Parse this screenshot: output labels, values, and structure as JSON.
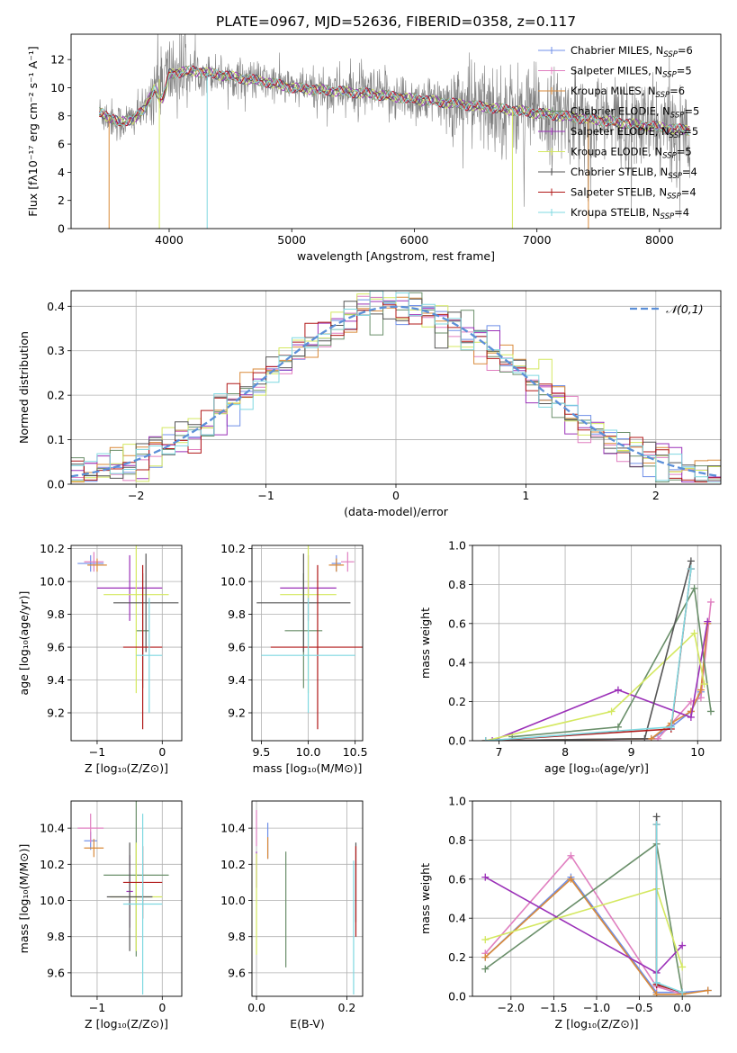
{
  "figure": {
    "title": "PLATE=0967, MJD=52636, FIBERID=0358, z=0.117"
  },
  "series_names": [
    "Chabrier MILES",
    "Salpeter MILES",
    "Kroupa MILES",
    "Chabrier ELODIE",
    "Salpeter ELODIE",
    "Kroupa ELODIE",
    "Chabrier STELIB",
    "Salpeter STELIB",
    "Kroupa STELIB"
  ],
  "colors": {
    "Chabrier MILES": "#6f8fe8",
    "Salpeter MILES": "#e07fc0",
    "Kroupa MILES": "#d98a3a",
    "Chabrier ELODIE": "#6a8f6a",
    "Salpeter ELODIE": "#9b30b8",
    "Kroupa ELODIE": "#d4e860",
    "Chabrier STELIB": "#555555",
    "Salpeter STELIB": "#b01818",
    "Kroupa STELIB": "#7fd8e0",
    "data": "#808080",
    "gaussian": "#5b8fd8"
  },
  "chart_data": [
    {
      "id": "spectrum",
      "type": "line",
      "xlabel": "wavelength [Angstrom, rest frame]",
      "ylabel": "Flux [fλ10⁻¹⁷ erg cm⁻² s⁻¹ A⁻¹]",
      "xlim": [
        3200,
        8500
      ],
      "ylim": [
        0,
        13.8
      ],
      "xticks": [
        4000,
        5000,
        6000,
        7000,
        8000
      ],
      "yticks": [
        0,
        2,
        4,
        6,
        8,
        10,
        12
      ],
      "legend": [
        "Chabrier MILES, N_SSP=6",
        "Salpeter MILES, N_SSP=5",
        "Kroupa MILES, N_SSP=6",
        "Chabrier ELODIE, N_SSP=5",
        "Salpeter ELODIE, N_SSP=5",
        "Kroupa ELODIE, N_SSP=5",
        "Chabrier STELIB, N_SSP=4",
        "Salpeter STELIB, N_SSP=4",
        "Kroupa STELIB, N_SSP=4"
      ],
      "legend_placement": "upper right",
      "continuum": {
        "x": [
          3450,
          3600,
          3700,
          3800,
          3900,
          4000,
          4200,
          4500,
          4800,
          5000,
          5300,
          5600,
          6000,
          6300,
          6600,
          7000,
          7400,
          7800,
          8200
        ],
        "y": [
          8.2,
          7.5,
          7.8,
          8.4,
          10.5,
          11.0,
          11.2,
          10.8,
          10.4,
          10.0,
          9.8,
          9.6,
          9.2,
          8.9,
          8.6,
          8.2,
          7.8,
          7.4,
          7.0
        ]
      },
      "absorption_dips": [
        {
          "x": 3510,
          "y": 0
        },
        {
          "x": 3920,
          "y": 0
        },
        {
          "x": 4310,
          "y": 0
        },
        {
          "x": 6800,
          "y": 0
        },
        {
          "x": 7420,
          "y": 0
        }
      ]
    },
    {
      "id": "residuals",
      "type": "histogram",
      "xlabel": "(data-model)/error",
      "ylabel": "Normed distribution",
      "xlim": [
        -2.5,
        2.5
      ],
      "ylim": [
        0,
        0.435
      ],
      "xticks": [
        -2,
        -1,
        0,
        1,
        2
      ],
      "yticks": [
        0.0,
        0.1,
        0.2,
        0.3,
        0.4
      ],
      "grid": true,
      "gaussian_label": "𝒩(0,1)",
      "legend_placement": "upper right"
    },
    {
      "id": "age-vs-Z",
      "type": "scatter",
      "xlabel": "Z [log₁₀(Z/Z⊙)]",
      "ylabel": "age  [log₁₀(age/yr)]",
      "xlim": [
        -1.4,
        0.3
      ],
      "ylim": [
        9.03,
        10.22
      ],
      "xticks": [
        -1,
        0
      ],
      "yticks": [
        9.2,
        9.4,
        9.6,
        9.8,
        10.0,
        10.2
      ],
      "grid": true,
      "points": [
        {
          "series": "Chabrier MILES",
          "x": -1.1,
          "xerr": 0.2,
          "y": 10.11,
          "yerr": 0.05
        },
        {
          "series": "Salpeter MILES",
          "x": -1.05,
          "xerr": 0.15,
          "y": 10.12,
          "yerr": 0.06
        },
        {
          "series": "Kroupa MILES",
          "x": -1.0,
          "xerr": 0.15,
          "y": 10.1,
          "yerr": 0.04
        },
        {
          "series": "Chabrier ELODIE",
          "x": -0.3,
          "xerr": 0.1,
          "y": 9.7,
          "yerr": 0.35
        },
        {
          "series": "Salpeter ELODIE",
          "x": -0.5,
          "xerr": 0.5,
          "y": 9.96,
          "yerr": 0.2
        },
        {
          "series": "Kroupa ELODIE",
          "x": -0.4,
          "xerr": 0.5,
          "y": 9.92,
          "yerr": 0.6
        },
        {
          "series": "Chabrier STELIB",
          "x": -0.25,
          "xerr": 0.5,
          "y": 9.87,
          "yerr": 0.3
        },
        {
          "series": "Salpeter STELIB",
          "x": -0.3,
          "xerr": 0.3,
          "y": 9.6,
          "yerr": 0.5
        },
        {
          "series": "Kroupa STELIB",
          "x": -0.2,
          "xerr": 0.2,
          "y": 9.55,
          "yerr": 0.35
        }
      ]
    },
    {
      "id": "age-vs-mass",
      "type": "scatter",
      "xlabel": "mass [log₁₀(M/M⊙)]",
      "ylabel": "",
      "xlim": [
        9.4,
        10.58
      ],
      "ylim": [
        9.03,
        10.22
      ],
      "xticks": [
        9.5,
        10.0,
        10.5
      ],
      "yticks": [
        9.2,
        9.4,
        9.6,
        9.8,
        10.0,
        10.2
      ],
      "grid": true,
      "points": [
        {
          "series": "Chabrier MILES",
          "x": 10.3,
          "xerr": 0.05,
          "y": 10.11,
          "yerr": 0.05
        },
        {
          "series": "Salpeter MILES",
          "x": 10.42,
          "xerr": 0.07,
          "y": 10.12,
          "yerr": 0.06
        },
        {
          "series": "Kroupa MILES",
          "x": 10.3,
          "xerr": 0.08,
          "y": 10.1,
          "yerr": 0.04
        },
        {
          "series": "Chabrier ELODIE",
          "x": 9.95,
          "xerr": 0.2,
          "y": 9.7,
          "yerr": 0.35
        },
        {
          "series": "Salpeter ELODIE",
          "x": 10.0,
          "xerr": 0.3,
          "y": 9.96,
          "yerr": 0.2
        },
        {
          "series": "Kroupa ELODIE",
          "x": 10.0,
          "xerr": 0.3,
          "y": 9.92,
          "yerr": 0.6
        },
        {
          "series": "Chabrier STELIB",
          "x": 9.95,
          "xerr": 0.5,
          "y": 9.87,
          "yerr": 0.3
        },
        {
          "series": "Salpeter STELIB",
          "x": 10.1,
          "xerr": 0.5,
          "y": 9.6,
          "yerr": 0.5
        },
        {
          "series": "Kroupa STELIB",
          "x": 10.0,
          "xerr": 0.5,
          "y": 9.55,
          "yerr": 0.35
        }
      ]
    },
    {
      "id": "weight-vs-age",
      "type": "line",
      "xlabel": "age  [log₁₀(age/yr)]",
      "ylabel": "mass weight",
      "xlim": [
        6.6,
        10.35
      ],
      "ylim": [
        0,
        1.0
      ],
      "xticks": [
        7,
        8,
        9,
        10
      ],
      "yticks": [
        0.0,
        0.2,
        0.4,
        0.6,
        0.8,
        1.0
      ],
      "grid": true,
      "series": [
        {
          "name": "Chabrier MILES",
          "x": [
            6.8,
            9.3,
            9.6,
            9.9,
            10.05,
            10.15
          ],
          "y": [
            0.0,
            0.01,
            0.07,
            0.15,
            0.25,
            0.6
          ]
        },
        {
          "name": "Salpeter MILES",
          "x": [
            6.8,
            9.4,
            9.9,
            10.05,
            10.2
          ],
          "y": [
            0.0,
            0.01,
            0.2,
            0.22,
            0.71
          ]
        },
        {
          "name": "Kroupa MILES",
          "x": [
            6.8,
            9.3,
            9.6,
            9.9,
            10.05,
            10.15
          ],
          "y": [
            0.0,
            0.01,
            0.09,
            0.15,
            0.26,
            0.6
          ]
        },
        {
          "name": "Chabrier ELODIE",
          "x": [
            7.2,
            8.8,
            9.95,
            10.2
          ],
          "y": [
            0.02,
            0.07,
            0.78,
            0.15
          ]
        },
        {
          "name": "Salpeter ELODIE",
          "x": [
            6.9,
            8.8,
            9.9,
            10.15
          ],
          "y": [
            0.0,
            0.26,
            0.12,
            0.61
          ]
        },
        {
          "name": "Kroupa ELODIE",
          "x": [
            6.8,
            8.7,
            9.95,
            10.1
          ],
          "y": [
            0.0,
            0.15,
            0.55,
            0.29
          ]
        },
        {
          "name": "Chabrier STELIB",
          "x": [
            6.8,
            9.2,
            9.9
          ],
          "y": [
            0.0,
            0.01,
            0.92
          ]
        },
        {
          "name": "Salpeter STELIB",
          "x": [
            6.8,
            9.6,
            9.9
          ],
          "y": [
            0.0,
            0.06,
            0.88
          ]
        },
        {
          "name": "Kroupa STELIB",
          "x": [
            6.8,
            9.6,
            9.9
          ],
          "y": [
            0.0,
            0.07,
            0.88
          ]
        }
      ]
    },
    {
      "id": "mass-vs-Z",
      "type": "scatter",
      "xlabel": "Z [log₁₀(Z/Z⊙)]",
      "ylabel": "mass [log₁₀(M/M⊙)]",
      "xlim": [
        -1.4,
        0.3
      ],
      "ylim": [
        9.47,
        10.55
      ],
      "xticks": [
        -1,
        0
      ],
      "yticks": [
        9.6,
        9.8,
        10.0,
        10.2,
        10.4
      ],
      "grid": true,
      "points": [
        {
          "series": "Chabrier MILES",
          "x": -1.1,
          "xerr": 0.1,
          "y": 10.33,
          "yerr": 0.05
        },
        {
          "series": "Salpeter MILES",
          "x": -1.1,
          "xerr": 0.2,
          "y": 10.4,
          "yerr": 0.08
        },
        {
          "series": "Kroupa MILES",
          "x": -1.05,
          "xerr": 0.15,
          "y": 10.29,
          "yerr": 0.05
        },
        {
          "series": "Chabrier ELODIE",
          "x": -0.4,
          "xerr": 0.5,
          "y": 10.14,
          "yerr": 0.45
        },
        {
          "series": "Salpeter ELODIE",
          "x": -0.5,
          "xerr": 0.05,
          "y": 10.05,
          "yerr": 0.2
        },
        {
          "series": "Kroupa ELODIE",
          "x": -0.4,
          "xerr": 0.4,
          "y": 10.02,
          "yerr": 0.3
        },
        {
          "series": "Chabrier STELIB",
          "x": -0.5,
          "xerr": 0.35,
          "y": 10.02,
          "yerr": 0.3
        },
        {
          "series": "Salpeter STELIB",
          "x": -0.3,
          "xerr": 0.3,
          "y": 10.1,
          "yerr": 0.2
        },
        {
          "series": "Kroupa STELIB",
          "x": -0.3,
          "xerr": 0.3,
          "y": 9.98,
          "yerr": 0.5
        }
      ]
    },
    {
      "id": "mass-vs-EBV",
      "type": "scatter",
      "xlabel": "E(B-V)",
      "ylabel": "",
      "xlim": [
        -0.01,
        0.235
      ],
      "ylim": [
        9.47,
        10.55
      ],
      "xticks": [
        0.0,
        0.2
      ],
      "yticks": [
        9.6,
        9.8,
        10.0,
        10.2,
        10.4
      ],
      "grid": true,
      "points": [
        {
          "series": "Chabrier MILES",
          "x": 0.025,
          "y": 10.33,
          "yerr": 0.1
        },
        {
          "series": "Salpeter MILES",
          "x": 0.0,
          "y": 10.4,
          "yerr": 0.1
        },
        {
          "series": "Kroupa MILES",
          "x": 0.025,
          "y": 10.29,
          "yerr": 0.06
        },
        {
          "series": "Chabrier ELODIE",
          "x": 0.065,
          "y": 9.95,
          "yerr": 0.32
        },
        {
          "series": "Salpeter ELODIE",
          "x": 0.0,
          "y": 10.17,
          "yerr": 0.1
        },
        {
          "series": "Kroupa ELODIE",
          "x": 0.0,
          "y": 9.98,
          "yerr": 0.28
        },
        {
          "series": "Chabrier STELIB",
          "x": 0.22,
          "y": 10.1,
          "yerr": 0.22
        },
        {
          "series": "Salpeter STELIB",
          "x": 0.22,
          "y": 10.05,
          "yerr": 0.25
        },
        {
          "series": "Kroupa STELIB",
          "x": 0.215,
          "y": 9.85,
          "yerr": 0.37
        }
      ]
    },
    {
      "id": "weight-vs-Z",
      "type": "line",
      "xlabel": "Z [log₁₀(Z/Z⊙)]",
      "ylabel": "mass weight",
      "xlim": [
        -2.45,
        0.45
      ],
      "ylim": [
        0,
        1.0
      ],
      "xticks": [
        -2.0,
        -1.5,
        -1.0,
        -0.5,
        0.0
      ],
      "yticks": [
        0.0,
        0.2,
        0.4,
        0.6,
        0.8,
        1.0
      ],
      "grid": true,
      "series": [
        {
          "name": "Chabrier MILES",
          "x": [
            -2.3,
            -1.3,
            -0.3,
            0.0,
            0.3
          ],
          "y": [
            0.2,
            0.61,
            0.02,
            0.02,
            0.03
          ]
        },
        {
          "name": "Salpeter MILES",
          "x": [
            -2.3,
            -1.3,
            -0.3,
            0.0
          ],
          "y": [
            0.22,
            0.72,
            0.05,
            0.01
          ]
        },
        {
          "name": "Kroupa MILES",
          "x": [
            -2.3,
            -1.3,
            -0.3,
            0.0,
            0.3
          ],
          "y": [
            0.2,
            0.6,
            0.01,
            0.01,
            0.03
          ]
        },
        {
          "name": "Chabrier ELODIE",
          "x": [
            -2.3,
            -0.3,
            0.0
          ],
          "y": [
            0.14,
            0.78,
            0.02
          ]
        },
        {
          "name": "Salpeter ELODIE",
          "x": [
            -2.3,
            -0.3,
            0.0
          ],
          "y": [
            0.61,
            0.12,
            0.26
          ]
        },
        {
          "name": "Kroupa ELODIE",
          "x": [
            -2.3,
            -0.3,
            0.0
          ],
          "y": [
            0.29,
            0.55,
            0.15
          ]
        },
        {
          "name": "Chabrier STELIB",
          "x": [
            -0.3,
            -0.3,
            0.0
          ],
          "y": [
            0.92,
            0.06,
            0.02
          ]
        },
        {
          "name": "Salpeter STELIB",
          "x": [
            -0.3,
            -0.3,
            0.0
          ],
          "y": [
            0.88,
            0.06,
            0.02
          ]
        },
        {
          "name": "Kroupa STELIB",
          "x": [
            -0.3,
            -0.3,
            0.0
          ],
          "y": [
            0.88,
            0.07,
            0.02
          ]
        }
      ]
    }
  ]
}
